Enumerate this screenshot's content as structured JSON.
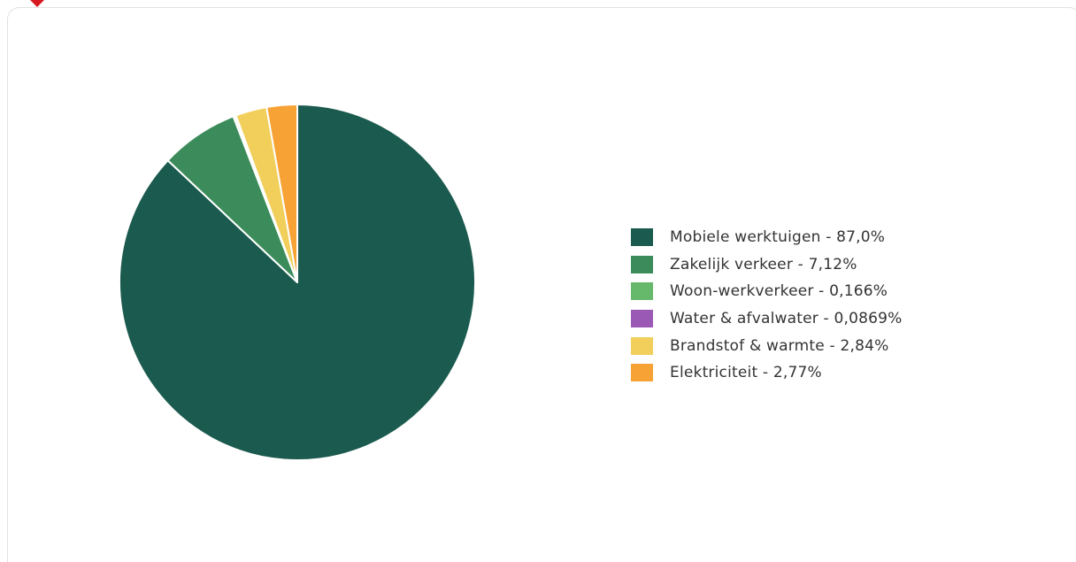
{
  "chart_data": {
    "type": "pie",
    "slices": [
      {
        "label": "Mobiele werktuigen - 87,0%",
        "name": "Mobiele werktuigen",
        "value": 87.0,
        "color": "#1b5a4e"
      },
      {
        "label": "Zakelijk verkeer - 7,12%",
        "name": "Zakelijk verkeer",
        "value": 7.12,
        "color": "#3b8c5a"
      },
      {
        "label": "Woon-werkverkeer - 0,166%",
        "name": "Woon-werkverkeer",
        "value": 0.166,
        "color": "#66b86a"
      },
      {
        "label": "Water & afvalwater - 0,0869%",
        "name": "Water & afvalwater",
        "value": 0.0869,
        "color": "#9b59b6"
      },
      {
        "label": "Brandstof & warmte - 2,84%",
        "name": "Brandstof & warmte",
        "value": 2.84,
        "color": "#f2cf5b"
      },
      {
        "label": "Elektriciteit - 2,77%",
        "name": "Elektriciteit",
        "value": 2.77,
        "color": "#f7a235"
      }
    ],
    "start_angle": "12 o'clock",
    "direction": "clockwise",
    "slice_border_color": "#ffffff",
    "legend_position": "right"
  },
  "colors": {
    "card_border": "#e2e2e2",
    "corner_marker": "#d7191f"
  }
}
